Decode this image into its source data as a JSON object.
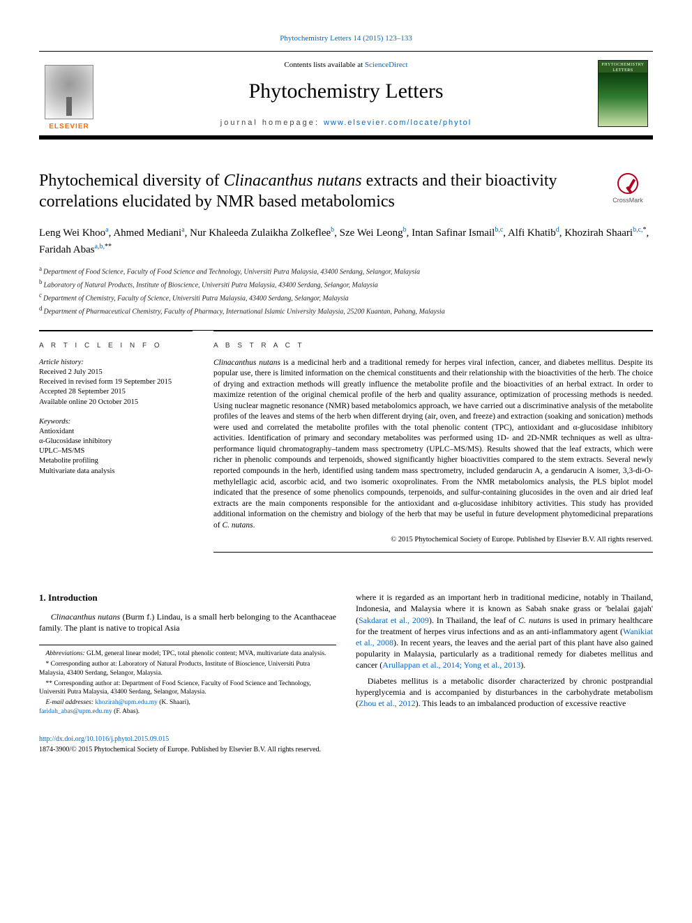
{
  "topLink": {
    "journal": "Phytochemistry Letters",
    "citation": "14 (2015) 123–133"
  },
  "masthead": {
    "contentsPrefix": "Contents lists available at ",
    "contentsLink": "ScienceDirect",
    "journalName": "Phytochemistry Letters",
    "homepagePrefix": "journal homepage: ",
    "homepageUrl": "www.elsevier.com/locate/phytol",
    "publisherWord": "ELSEVIER",
    "coverTitle": "PHYTOCHEMISTRY LETTERS"
  },
  "crossmark": {
    "label": "CrossMark"
  },
  "article": {
    "titleLine1": "Phytochemical diversity of ",
    "titleItalic": "Clinacanthus nutans",
    "titleLine2": " extracts and their bioactivity correlations elucidated by NMR based metabolomics"
  },
  "authors": [
    {
      "name": "Leng Wei Khoo",
      "sup": "a"
    },
    {
      "name": "Ahmed Mediani",
      "sup": "a"
    },
    {
      "name": "Nur Khaleeda Zulaikha Zolkeflee",
      "sup": "b"
    },
    {
      "name": "Sze Wei Leong",
      "sup": "b"
    },
    {
      "name": "Intan Safinar Ismail",
      "sup": "b,c"
    },
    {
      "name": "Alfi Khatib",
      "sup": "d"
    },
    {
      "name": "Khozirah Shaari",
      "sup": "b,c,",
      "star": "*"
    },
    {
      "name": "Faridah Abas",
      "sup": "a,b,",
      "star": "**"
    }
  ],
  "affiliations": [
    {
      "key": "a",
      "text": "Department of Food Science, Faculty of Food Science and Technology, Universiti Putra Malaysia, 43400 Serdang, Selangor, Malaysia"
    },
    {
      "key": "b",
      "text": "Laboratory of Natural Products, Institute of Bioscience, Universiti Putra Malaysia, 43400 Serdang, Selangor, Malaysia"
    },
    {
      "key": "c",
      "text": "Department of Chemistry, Faculty of Science, Universiti Putra Malaysia, 43400 Serdang, Selangor, Malaysia"
    },
    {
      "key": "d",
      "text": "Department of Pharmaceutical Chemistry, Faculty of Pharmacy, International Islamic University Malaysia, 25200 Kuantan, Pahang, Malaysia"
    }
  ],
  "info": {
    "labelInfo": "A R T I C L E   I N F O",
    "historyLabel": "Article history:",
    "history": [
      "Received 2 July 2015",
      "Received in revised form 19 September 2015",
      "Accepted 28 September 2015",
      "Available online 20 October 2015"
    ],
    "keywordsLabel": "Keywords:",
    "keywords": [
      "Antioxidant",
      "α-Glucosidase inhibitory",
      "UPLC–MS/MS",
      "Metabolite profiling",
      "Multivariate data analysis"
    ]
  },
  "abstract": {
    "label": "A B S T R A C T",
    "textPrefixItalic": "Clinacanthus nutans",
    "text": " is a medicinal herb and a traditional remedy for herpes viral infection, cancer, and diabetes mellitus. Despite its popular use, there is limited information on the chemical constituents and their relationship with the bioactivities of the herb. The choice of drying and extraction methods will greatly influence the metabolite profile and the bioactivities of an herbal extract. In order to maximize retention of the original chemical profile of the herb and quality assurance, optimization of processing methods is needed. Using nuclear magnetic resonance (NMR) based metabolomics approach, we have carried out a discriminative analysis of the metabolite profiles of the leaves and stems of the herb when different drying (air, oven, and freeze) and extraction (soaking and sonication) methods were used and correlated the metabolite profiles with the total phenolic content (TPC), antioxidant and α-glucosidase inhibitory activities. Identification of primary and secondary metabolites was performed using 1D- and 2D-NMR techniques as well as ultra-performance liquid chromatography–tandem mass spectrometry (UPLC–MS/MS). Results showed that the leaf extracts, which were richer in phenolic compounds and terpenoids, showed significantly higher bioactivities compared to the stem extracts. Several newly reported compounds in the herb, identified using tandem mass spectrometry, included gendarucin A, a gendarucin A isomer, 3,3-di-O-methylellagic acid, ascorbic acid, and two isomeric oxoprolinates. From the NMR metabolomics analysis, the PLS biplot model indicated that the presence of some phenolics compounds, terpenoids, and sulfur-containing glucosides in the oven and air dried leaf extracts are the main components responsible for the antioxidant and α-glucosidase inhibitory activities. This study has provided additional information on the chemistry and biology of the herb that may be useful in future development phytomedicinal preparations of ",
    "textTrailItalic": "C. nutans",
    "textTrail": ".",
    "copyright": "© 2015 Phytochemical Society of Europe. Published by Elsevier B.V. All rights reserved."
  },
  "body": {
    "sectionNumber": "1.",
    "sectionTitle": "Introduction",
    "p1aItalic": "Clinacanthus nutans",
    "p1a": " (Burm f.) Lindau, is a small herb belonging to the Acanthaceae family. The plant is native to tropical Asia",
    "p1b_pre": "where it is regarded as an important herb in traditional medicine, notably in Thailand, Indonesia, and Malaysia where it is known as Sabah snake grass or 'belalai gajah' (",
    "p1b_ref1": "Sakdarat et al., 2009",
    "p1b_mid1": "). In Thailand, the leaf of ",
    "p1b_ital": "C. nutans",
    "p1b_mid2": " is used in primary healthcare for the treatment of herpes virus infections and as an anti-inflammatory agent (",
    "p1b_ref2": "Wanikiat et al., 2008",
    "p1b_mid3": "). In recent years, the leaves and the aerial part of this plant have also gained popularity in Malaysia, particularly as a traditional remedy for diabetes mellitus and cancer (",
    "p1b_ref3": "Arullappan et al., 2014; Yong et al., 2013",
    "p1b_tail": ").",
    "p2_pre": "Diabetes mellitus is a metabolic disorder characterized by chronic postprandial hyperglycemia and is accompanied by disturbances in the carbohydrate metabolism (",
    "p2_ref": "Zhou et al., 2012",
    "p2_tail": "). This leads to an imbalanced production of excessive reactive"
  },
  "footnotes": {
    "abbrevLabel": "Abbreviations:",
    "abbrev": " GLM, general linear model; TPC, total phenolic content; MVA, multivariate data analysis.",
    "star1": "* Corresponding author at: Laboratory of Natural Products, Institute of Bioscience, Universiti Putra Malaysia, 43400 Serdang, Selangor, Malaysia.",
    "star2": "** Corresponding author at: Department of Food Science, Faculty of Food Science and Technology, Universiti Putra Malaysia, 43400 Serdang, Selangor, Malaysia.",
    "emailLabel": "E-mail addresses:",
    "email1": "khozirah@upm.edu.my",
    "email1who": " (K. Shaari),",
    "email2": "faridah_abas@upm.edu.my",
    "email2who": " (F. Abas)."
  },
  "doi": {
    "url": "http://dx.doi.org/10.1016/j.phytol.2015.09.015",
    "issnLine": "1874-3900/© 2015 Phytochemical Society of Europe. Published by Elsevier B.V. All rights reserved."
  },
  "colors": {
    "link": "#0066cc",
    "elsevierOrange": "#ff6a00",
    "crossmarkRed": "#b00020"
  },
  "typography": {
    "bodyFont": "Georgia, 'Times New Roman', serif",
    "titleFontSize": 24,
    "journalNameFontSize": 30,
    "bodyFontSize": 12,
    "abstractFontSize": 11.5,
    "footnoteFontSize": 9.5
  },
  "layout": {
    "pageWidth": 992,
    "pageHeight": 1323,
    "columns": 2,
    "columnGap": 28
  }
}
